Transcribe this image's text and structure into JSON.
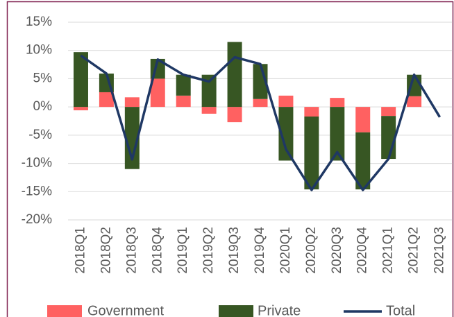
{
  "chart_data": {
    "type": "bar",
    "categories": [
      "2018Q1",
      "2018Q2",
      "2018Q3",
      "2018Q4",
      "2019Q1",
      "2019Q2",
      "2019Q3",
      "2019Q4",
      "2020Q1",
      "2020Q2",
      "2020Q3",
      "2020Q4",
      "2021Q1",
      "2021Q2",
      "2021Q3"
    ],
    "series": [
      {
        "name": "Government",
        "color": "#ff6161",
        "values": [
          -0.6,
          2.6,
          1.7,
          5.0,
          2.0,
          -1.2,
          -2.7,
          1.4,
          2.0,
          -1.7,
          1.6,
          -4.5,
          -1.6,
          1.9,
          null
        ]
      },
      {
        "name": "Private",
        "color": "#375623",
        "values": [
          9.7,
          3.3,
          -11.0,
          3.5,
          3.7,
          5.7,
          11.5,
          6.2,
          -9.5,
          -12.9,
          -9.5,
          -10.1,
          -7.6,
          3.8,
          null
        ]
      },
      {
        "name": "Total",
        "type": "line",
        "color": "#1f3864",
        "values": [
          9.1,
          5.9,
          -9.3,
          8.4,
          5.7,
          4.5,
          8.8,
          7.6,
          -7.5,
          -14.7,
          -8.0,
          -14.7,
          -9.2,
          5.7,
          -1.8
        ]
      }
    ],
    "ylim": [
      -20,
      15
    ],
    "yticks": [
      {
        "value": -20,
        "label": "-20%"
      },
      {
        "value": -15,
        "label": "-15%"
      },
      {
        "value": -10,
        "label": "-10%"
      },
      {
        "value": -5,
        "label": "-5%"
      },
      {
        "value": 0,
        "label": "0%"
      },
      {
        "value": 5,
        "label": "5%"
      },
      {
        "value": 10,
        "label": "10%"
      },
      {
        "value": 15,
        "label": "15%"
      }
    ],
    "grid": true
  }
}
